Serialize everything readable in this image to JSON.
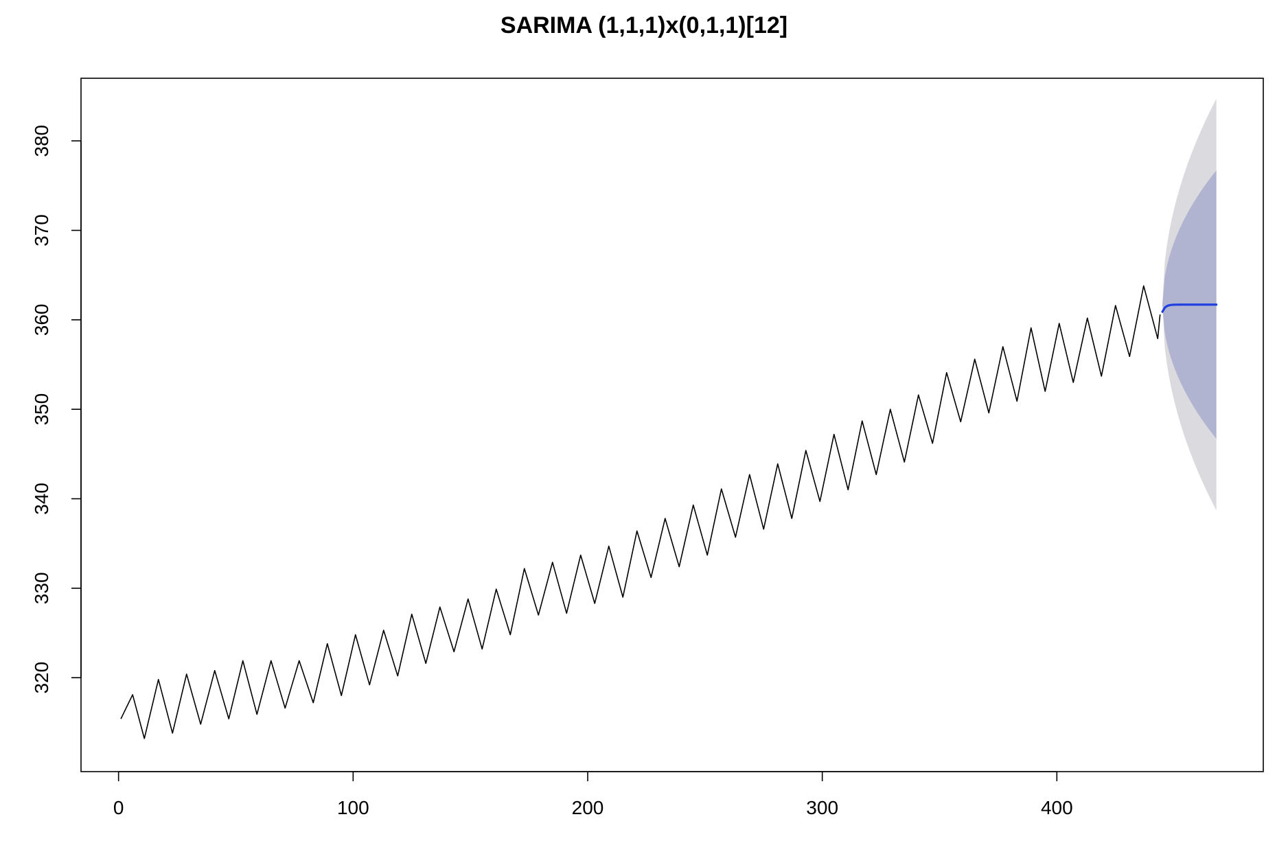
{
  "chart_data": {
    "type": "line",
    "title": "SARIMA (1,1,1)x(0,1,1)[12]",
    "xlabel": "",
    "ylabel": "",
    "xlim": [
      -16,
      488
    ],
    "ylim": [
      309.5,
      387
    ],
    "xticks": [
      0,
      100,
      200,
      300,
      400
    ],
    "yticks": [
      320,
      330,
      340,
      350,
      360,
      370,
      380
    ],
    "grid": false,
    "colors": {
      "observed": "#000000",
      "forecast": "#1f3fe0",
      "band80": "#b1b4d0",
      "band95": "#dadadf"
    },
    "observed": {
      "x_start": 1,
      "x_end": 444,
      "first_value": 315.4,
      "last_value": 360.6,
      "period": 12,
      "month_peaks": [
        [
          6,
          318.1
        ],
        [
          17,
          319.8
        ],
        [
          29,
          320.4
        ],
        [
          41,
          320.8
        ],
        [
          53,
          321.9
        ],
        [
          65,
          321.9
        ],
        [
          77,
          321.9
        ],
        [
          89,
          323.8
        ],
        [
          101,
          324.8
        ],
        [
          113,
          325.3
        ],
        [
          125,
          327.1
        ],
        [
          137,
          327.9
        ],
        [
          149,
          328.8
        ],
        [
          161,
          329.9
        ],
        [
          173,
          332.2
        ],
        [
          185,
          332.9
        ],
        [
          197,
          333.7
        ],
        [
          209,
          334.7
        ],
        [
          221,
          336.4
        ],
        [
          233,
          337.8
        ],
        [
          245,
          339.3
        ],
        [
          257,
          341.1
        ],
        [
          269,
          342.7
        ],
        [
          281,
          343.9
        ],
        [
          293,
          345.4
        ],
        [
          305,
          347.2
        ],
        [
          317,
          348.7
        ],
        [
          329,
          350.0
        ],
        [
          341,
          351.6
        ],
        [
          353,
          354.1
        ],
        [
          365,
          355.6
        ],
        [
          377,
          357.0
        ],
        [
          389,
          359.1
        ],
        [
          401,
          359.6
        ],
        [
          413,
          360.2
        ],
        [
          425,
          361.6
        ],
        [
          437,
          363.8
        ]
      ],
      "month_troughs": [
        [
          11,
          313.2
        ],
        [
          23,
          313.8
        ],
        [
          35,
          314.8
        ],
        [
          47,
          315.4
        ],
        [
          59,
          315.9
        ],
        [
          71,
          316.6
        ],
        [
          83,
          317.2
        ],
        [
          95,
          318.0
        ],
        [
          107,
          319.2
        ],
        [
          119,
          320.2
        ],
        [
          131,
          321.6
        ],
        [
          143,
          322.9
        ],
        [
          155,
          323.2
        ],
        [
          167,
          324.8
        ],
        [
          179,
          327.0
        ],
        [
          191,
          327.2
        ],
        [
          203,
          328.3
        ],
        [
          215,
          329.0
        ],
        [
          227,
          331.2
        ],
        [
          239,
          332.4
        ],
        [
          251,
          333.7
        ],
        [
          263,
          335.7
        ],
        [
          275,
          336.6
        ],
        [
          287,
          337.8
        ],
        [
          299,
          339.7
        ],
        [
          311,
          341.0
        ],
        [
          323,
          342.7
        ],
        [
          335,
          344.1
        ],
        [
          347,
          346.2
        ],
        [
          359,
          348.6
        ],
        [
          371,
          349.6
        ],
        [
          383,
          350.9
        ],
        [
          395,
          352.0
        ],
        [
          407,
          353.0
        ],
        [
          419,
          353.7
        ],
        [
          431,
          355.9
        ],
        [
          443,
          357.9
        ]
      ]
    },
    "forecast": {
      "x_start": 445,
      "x_end": 468,
      "mean_start": 360.9,
      "mean": 361.7,
      "lo80_end": 346.7,
      "hi80_end": 376.7,
      "lo95_end": 338.7,
      "hi95_end": 384.7
    }
  }
}
